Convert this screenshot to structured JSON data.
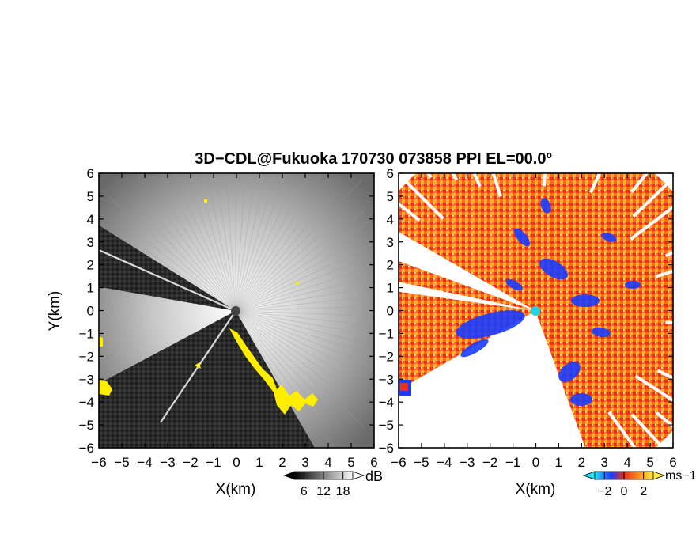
{
  "title": "3D−CDL@Fukuoka 170730 073858 PPI EL=00.0º",
  "colors": {
    "background": "#ffffff",
    "echo_fill": "#2a2a2a",
    "clutter": "#ffee00",
    "velocity_neg": "#1a3cff",
    "velocity_zero": "#e6321e",
    "velocity_pos": "#ffa020",
    "radar_marker_left": "#444444",
    "radar_marker_right": "#22d2e6"
  },
  "chart_data": [
    {
      "type": "heatmap",
      "panel": "reflectivity",
      "xlabel": "X(km)",
      "ylabel": "Y(km)",
      "xlim": [
        -6,
        6
      ],
      "ylim": [
        -6,
        6
      ],
      "xticks": [
        "−6",
        "−5",
        "−4",
        "−3",
        "−2",
        "−1",
        "0",
        "1",
        "2",
        "3",
        "4",
        "5",
        "6"
      ],
      "yticks": [
        "6",
        "5",
        "4",
        "3",
        "2",
        "1",
        "0",
        "−1",
        "−2",
        "−3",
        "−4",
        "−5",
        "−6"
      ],
      "colorbar": {
        "ticks": [
          "6",
          "12",
          "18"
        ],
        "unit": "dB",
        "colormap": "grayscale"
      },
      "field": "radial PPI, grayscale echo strength within 6 km range; blocked sectors dark",
      "blocked_sectors_deg": [
        [
          150,
          168
        ],
        [
          210,
          300
        ]
      ]
    },
    {
      "type": "heatmap",
      "panel": "doppler_velocity",
      "xlabel": "X(km)",
      "ylabel": "",
      "xlim": [
        -6,
        6
      ],
      "ylim": [
        -6,
        6
      ],
      "xticks": [
        "−6",
        "−5",
        "−4",
        "−3",
        "−2",
        "−1",
        "0",
        "1",
        "2",
        "3",
        "4",
        "5",
        "6"
      ],
      "yticks": [
        "6",
        "5",
        "4",
        "3",
        "2",
        "1",
        "0",
        "−1",
        "−2",
        "−3",
        "−4",
        "−5",
        "−6"
      ],
      "colorbar": {
        "ticks": [
          "−2",
          "0",
          "2"
        ],
        "unit": "ms−1",
        "colormap": "cyan-blue-red-orange-yellow"
      },
      "field": "radial PPI of Doppler velocity; mostly positive (red/orange) with blue negative patches"
    }
  ]
}
